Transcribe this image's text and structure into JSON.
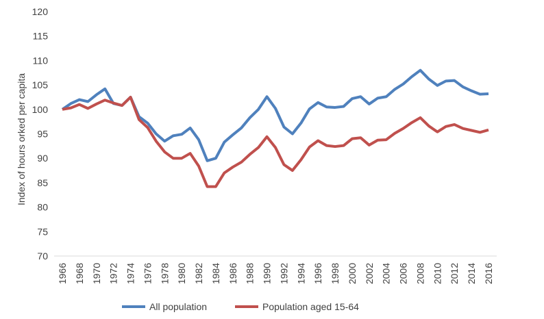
{
  "chart_data": {
    "type": "line",
    "title": "",
    "xlabel": "",
    "ylabel": "Index of hours orked per capita",
    "ylim": [
      70,
      120
    ],
    "yticks": [
      70,
      75,
      80,
      85,
      90,
      95,
      100,
      105,
      110,
      115,
      120
    ],
    "xticks": [
      1966,
      1968,
      1970,
      1972,
      1974,
      1976,
      1978,
      1980,
      1982,
      1984,
      1986,
      1988,
      1990,
      1992,
      1994,
      1996,
      1998,
      2000,
      2002,
      2004,
      2006,
      2008,
      2010,
      2012,
      2014,
      2016
    ],
    "grid": false,
    "legend": "bottom",
    "x": [
      1966,
      1967,
      1968,
      1969,
      1970,
      1971,
      1972,
      1973,
      1974,
      1975,
      1976,
      1977,
      1978,
      1979,
      1980,
      1981,
      1982,
      1983,
      1984,
      1985,
      1986,
      1987,
      1988,
      1989,
      1990,
      1991,
      1992,
      1993,
      1994,
      1995,
      1996,
      1997,
      1998,
      1999,
      2000,
      2001,
      2002,
      2003,
      2004,
      2005,
      2006,
      2007,
      2008,
      2009,
      2010,
      2011,
      2012,
      2013,
      2014,
      2015,
      2016
    ],
    "series": [
      {
        "name": "All population",
        "color": "#4f81bd",
        "values": [
          100,
          101.2,
          102,
          101.6,
          103,
          104.2,
          101.2,
          100.8,
          102.5,
          98.5,
          97.2,
          95,
          93.5,
          94.6,
          94.9,
          96.2,
          93.8,
          89.5,
          90,
          93.3,
          94.8,
          96.2,
          98.3,
          100,
          102.6,
          100.2,
          96.4,
          95,
          97.2,
          100.1,
          101.4,
          100.5,
          100.4,
          100.6,
          102.2,
          102.6,
          101.1,
          102.3,
          102.6,
          104.1,
          105.2,
          106.7,
          108,
          106.2,
          104.9,
          105.8,
          105.9,
          104.6,
          103.8,
          103.1,
          103.2
        ]
      },
      {
        "name": "Population aged 15-64",
        "color": "#c0504d",
        "values": [
          100,
          100.3,
          101,
          100.2,
          101.1,
          101.9,
          101.3,
          100.8,
          102.5,
          97.9,
          96.3,
          93.5,
          91.3,
          90,
          90,
          91,
          88.4,
          84.2,
          84.2,
          87,
          88.2,
          89.2,
          90.8,
          92.2,
          94.4,
          92.2,
          88.7,
          87.5,
          89.7,
          92.3,
          93.6,
          92.6,
          92.4,
          92.6,
          94,
          94.2,
          92.7,
          93.7,
          93.8,
          95.1,
          96.1,
          97.3,
          98.3,
          96.6,
          95.4,
          96.5,
          96.9,
          96.1,
          95.7,
          95.3,
          95.8
        ]
      }
    ]
  }
}
